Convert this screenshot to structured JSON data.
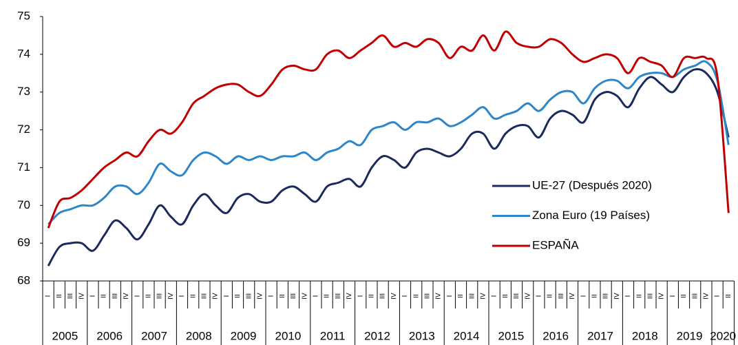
{
  "chart_data": {
    "type": "line",
    "categories": [
      "I",
      "II",
      "III",
      "IV",
      "I",
      "II",
      "III",
      "IV",
      "I",
      "II",
      "III",
      "IV",
      "I",
      "II",
      "III",
      "IV",
      "I",
      "II",
      "III",
      "IV",
      "I",
      "II",
      "III",
      "IV",
      "I",
      "II",
      "III",
      "IV",
      "I",
      "II",
      "III",
      "IV",
      "I",
      "II",
      "III",
      "IV",
      "I",
      "II",
      "III",
      "IV",
      "I",
      "II",
      "III",
      "IV",
      "I",
      "II",
      "III",
      "IV",
      "I",
      "II",
      "III",
      "IV",
      "I",
      "II",
      "III",
      "IV",
      "I",
      "II",
      "III",
      "IV",
      "I",
      "II"
    ],
    "year_labels": [
      "2005",
      "2006",
      "2007",
      "2008",
      "2009",
      "2010",
      "2011",
      "2012",
      "2013",
      "2014",
      "2015",
      "2016",
      "2017",
      "2018",
      "2019",
      "2020"
    ],
    "series": [
      {
        "name": "UE-27 (Después 2020)",
        "color": "#1b2a5c",
        "values": [
          68.4,
          68.9,
          69.0,
          69.0,
          68.8,
          69.2,
          69.6,
          69.4,
          69.1,
          69.5,
          70.0,
          69.7,
          69.5,
          70.0,
          70.3,
          70.0,
          69.8,
          70.2,
          70.3,
          70.1,
          70.1,
          70.4,
          70.5,
          70.3,
          70.1,
          70.5,
          70.6,
          70.7,
          70.5,
          71.0,
          71.3,
          71.2,
          71.0,
          71.4,
          71.5,
          71.4,
          71.3,
          71.5,
          71.9,
          71.9,
          71.5,
          71.9,
          72.1,
          72.1,
          71.8,
          72.3,
          72.5,
          72.4,
          72.2,
          72.8,
          73.0,
          72.9,
          72.6,
          73.1,
          73.4,
          73.2,
          73.0,
          73.4,
          73.6,
          73.5,
          73.0,
          71.8
        ]
      },
      {
        "name": "Zona Euro (19 Países)",
        "color": "#2e86c8",
        "values": [
          69.5,
          69.8,
          69.9,
          70.0,
          70.0,
          70.2,
          70.5,
          70.5,
          70.3,
          70.6,
          71.1,
          70.9,
          70.8,
          71.2,
          71.4,
          71.3,
          71.1,
          71.3,
          71.2,
          71.3,
          71.2,
          71.3,
          71.3,
          71.4,
          71.2,
          71.4,
          71.5,
          71.7,
          71.6,
          72.0,
          72.1,
          72.2,
          72.0,
          72.2,
          72.2,
          72.3,
          72.1,
          72.2,
          72.4,
          72.6,
          72.3,
          72.4,
          72.5,
          72.7,
          72.5,
          72.8,
          73.0,
          73.0,
          72.7,
          73.1,
          73.3,
          73.3,
          73.1,
          73.4,
          73.5,
          73.5,
          73.4,
          73.6,
          73.7,
          73.8,
          73.3,
          71.6
        ]
      },
      {
        "name": "ESPAÑA",
        "color": "#c00000",
        "values": [
          69.4,
          70.1,
          70.2,
          70.4,
          70.7,
          71.0,
          71.2,
          71.4,
          71.3,
          71.7,
          72.0,
          71.9,
          72.2,
          72.7,
          72.9,
          73.1,
          73.2,
          73.2,
          73.0,
          72.9,
          73.2,
          73.6,
          73.7,
          73.6,
          73.6,
          74.0,
          74.1,
          73.9,
          74.1,
          74.3,
          74.5,
          74.2,
          74.3,
          74.2,
          74.4,
          74.3,
          73.9,
          74.2,
          74.1,
          74.5,
          74.1,
          74.6,
          74.3,
          74.2,
          74.2,
          74.4,
          74.3,
          74.0,
          73.8,
          73.9,
          74.0,
          73.9,
          73.5,
          73.9,
          73.8,
          73.7,
          73.4,
          73.9,
          73.9,
          73.9,
          73.4,
          69.8
        ]
      }
    ],
    "ylim": [
      68,
      75
    ],
    "yticks": [
      68,
      69,
      70,
      71,
      72,
      73,
      74,
      75
    ],
    "grid": false,
    "legend": "right"
  }
}
